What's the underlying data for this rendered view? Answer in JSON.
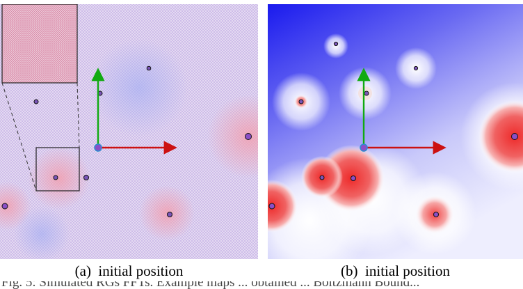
{
  "figure": {
    "panels": [
      {
        "id": "a",
        "caption": "(a)  initial position",
        "style": "vector-field-pattern",
        "has_inset": true,
        "colors": {
          "base": "#d6c4e6",
          "warm": "#f2a9b8",
          "cool": "#b4b6f2"
        }
      },
      {
        "id": "b",
        "caption": "(b)  initial position",
        "style": "heatmap",
        "colors": {
          "cold": "#2020ee",
          "neutral": "#ffffff",
          "hot": "#ee3030"
        }
      }
    ],
    "axes_colors": {
      "x": "#cc1111",
      "y": "#11aa11",
      "origin": "#8a4fc7"
    },
    "footer_text": "Fig. 5: Simulated RGs FFTs. Example maps ... obtained ... Boltzmann Bound..."
  }
}
